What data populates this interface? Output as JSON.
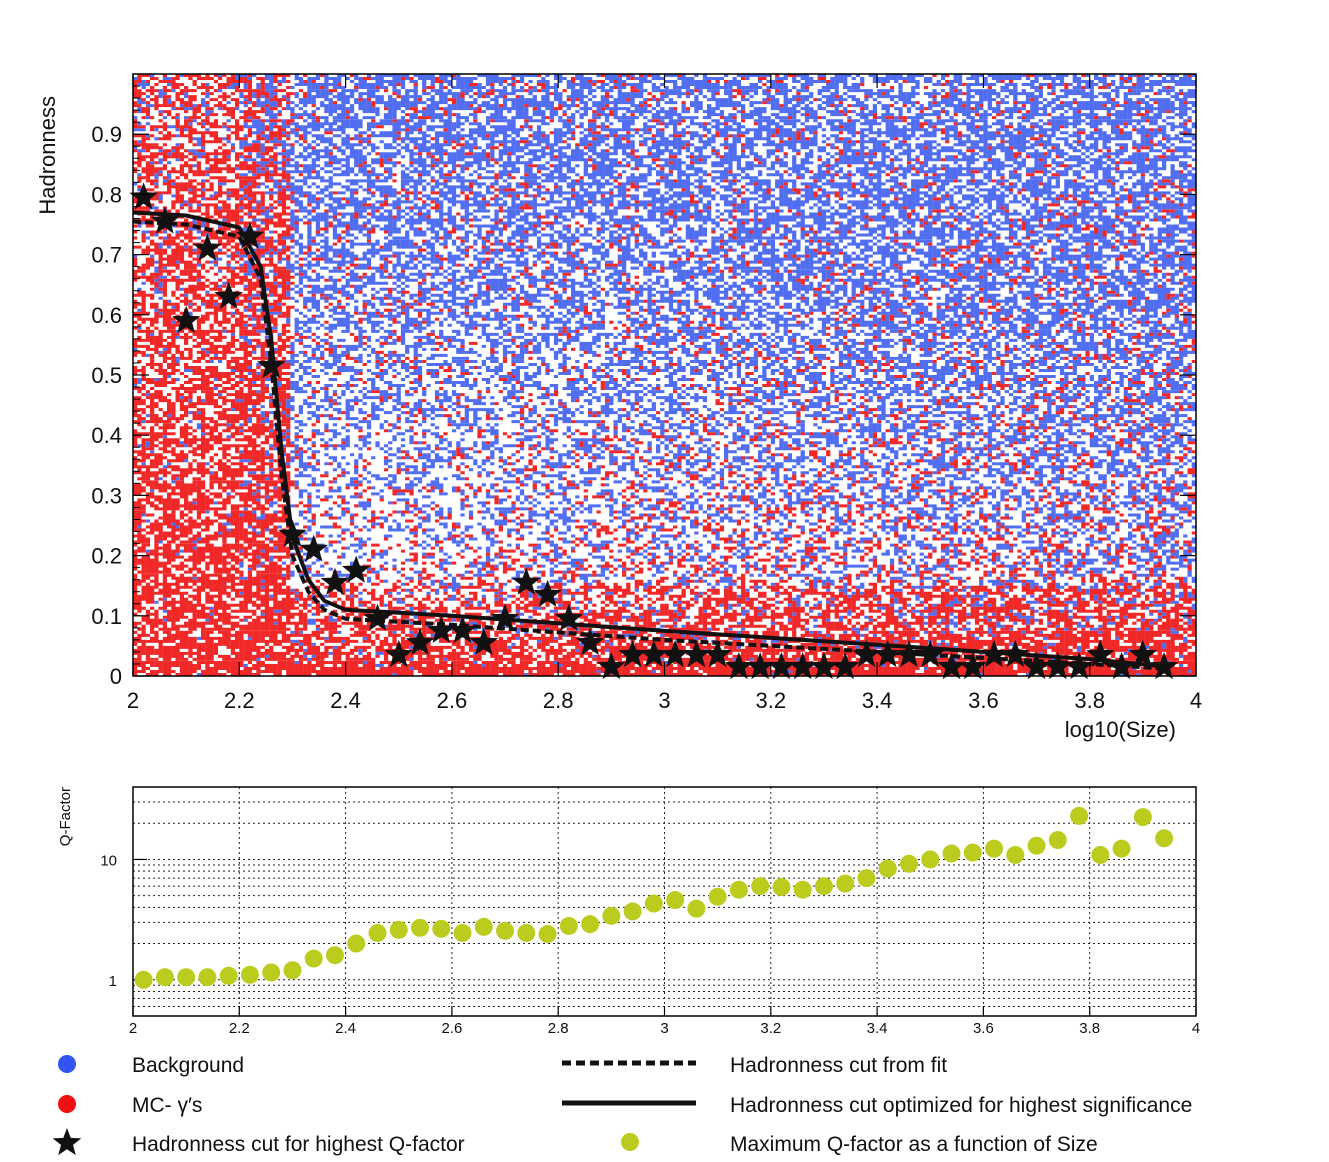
{
  "chart_data": [
    {
      "type": "scatter",
      "xlabel": "log10(Size)",
      "ylabel": "Hadronness",
      "xlim": [
        2,
        4
      ],
      "ylim": [
        0,
        1
      ],
      "grid": false,
      "x_ticks": [
        "2",
        "2.2",
        "2.4",
        "2.6",
        "2.8",
        "3",
        "3.2",
        "3.4",
        "3.6",
        "3.8",
        "4"
      ],
      "y_ticks": [
        "0",
        "0.1",
        "0.2",
        "0.3",
        "0.4",
        "0.5",
        "0.6",
        "0.7",
        "0.8",
        "0.9"
      ],
      "colors": {
        "background": "#3355ee",
        "mc_gamma": "#ee1111",
        "stars": "#111111"
      },
      "stars": [
        [
          2.02,
          0.795
        ],
        [
          2.06,
          0.755
        ],
        [
          2.1,
          0.59
        ],
        [
          2.14,
          0.71
        ],
        [
          2.18,
          0.63
        ],
        [
          2.22,
          0.73
        ],
        [
          2.26,
          0.515
        ],
        [
          2.3,
          0.235
        ],
        [
          2.34,
          0.21
        ],
        [
          2.38,
          0.155
        ],
        [
          2.42,
          0.175
        ],
        [
          2.46,
          0.095
        ],
        [
          2.5,
          0.035
        ],
        [
          2.54,
          0.055
        ],
        [
          2.58,
          0.075
        ],
        [
          2.62,
          0.075
        ],
        [
          2.66,
          0.055
        ],
        [
          2.7,
          0.095
        ],
        [
          2.74,
          0.155
        ],
        [
          2.78,
          0.135
        ],
        [
          2.82,
          0.095
        ],
        [
          2.86,
          0.055
        ],
        [
          2.9,
          0.015
        ],
        [
          2.94,
          0.035
        ],
        [
          2.98,
          0.035
        ],
        [
          3.02,
          0.035
        ],
        [
          3.06,
          0.035
        ],
        [
          3.1,
          0.035
        ],
        [
          3.14,
          0.015
        ],
        [
          3.18,
          0.015
        ],
        [
          3.22,
          0.015
        ],
        [
          3.26,
          0.015
        ],
        [
          3.3,
          0.015
        ],
        [
          3.34,
          0.015
        ],
        [
          3.38,
          0.035
        ],
        [
          3.42,
          0.035
        ],
        [
          3.46,
          0.035
        ],
        [
          3.5,
          0.035
        ],
        [
          3.54,
          0.015
        ],
        [
          3.58,
          0.015
        ],
        [
          3.62,
          0.035
        ],
        [
          3.66,
          0.035
        ],
        [
          3.7,
          0.015
        ],
        [
          3.74,
          0.015
        ],
        [
          3.78,
          0.015
        ],
        [
          3.82,
          0.035
        ],
        [
          3.86,
          0.015
        ],
        [
          3.9,
          0.035
        ],
        [
          3.94,
          0.015
        ]
      ],
      "fit_cut": [
        [
          2.0,
          0.755
        ],
        [
          2.1,
          0.75
        ],
        [
          2.2,
          0.73
        ],
        [
          2.24,
          0.66
        ],
        [
          2.26,
          0.52
        ],
        [
          2.28,
          0.33
        ],
        [
          2.3,
          0.2
        ],
        [
          2.33,
          0.14
        ],
        [
          2.36,
          0.11
        ],
        [
          2.4,
          0.095
        ],
        [
          2.6,
          0.085
        ],
        [
          3.0,
          0.06
        ],
        [
          3.4,
          0.04
        ],
        [
          3.8,
          0.02
        ],
        [
          3.95,
          0.012
        ]
      ],
      "optimized_cut": [
        [
          2.0,
          0.77
        ],
        [
          2.1,
          0.765
        ],
        [
          2.2,
          0.745
        ],
        [
          2.24,
          0.68
        ],
        [
          2.26,
          0.56
        ],
        [
          2.28,
          0.37
        ],
        [
          2.3,
          0.23
        ],
        [
          2.33,
          0.16
        ],
        [
          2.36,
          0.125
        ],
        [
          2.4,
          0.11
        ],
        [
          2.6,
          0.1
        ],
        [
          3.0,
          0.075
        ],
        [
          3.4,
          0.052
        ],
        [
          3.8,
          0.028
        ],
        [
          3.95,
          0.015
        ]
      ]
    },
    {
      "type": "scatter",
      "ylabel": "Q-Factor",
      "xlim": [
        2,
        4
      ],
      "ylim": [
        0.5,
        40
      ],
      "yscale": "log",
      "grid": true,
      "x_ticks": [
        "2",
        "2.2",
        "2.4",
        "2.6",
        "2.8",
        "3",
        "3.2",
        "3.4",
        "3.6",
        "3.8",
        "4"
      ],
      "y_ticks": [
        "1",
        "10"
      ],
      "point_color": "#bccc1e",
      "points": [
        [
          2.02,
          1.0
        ],
        [
          2.06,
          1.05
        ],
        [
          2.1,
          1.05
        ],
        [
          2.14,
          1.05
        ],
        [
          2.18,
          1.08
        ],
        [
          2.22,
          1.1
        ],
        [
          2.26,
          1.15
        ],
        [
          2.3,
          1.2
        ],
        [
          2.34,
          1.5
        ],
        [
          2.38,
          1.6
        ],
        [
          2.42,
          2.0
        ],
        [
          2.46,
          2.45
        ],
        [
          2.5,
          2.6
        ],
        [
          2.54,
          2.7
        ],
        [
          2.58,
          2.65
        ],
        [
          2.62,
          2.45
        ],
        [
          2.66,
          2.75
        ],
        [
          2.7,
          2.55
        ],
        [
          2.74,
          2.45
        ],
        [
          2.78,
          2.4
        ],
        [
          2.82,
          2.8
        ],
        [
          2.86,
          2.9
        ],
        [
          2.9,
          3.4
        ],
        [
          2.94,
          3.7
        ],
        [
          2.98,
          4.3
        ],
        [
          3.02,
          4.6
        ],
        [
          3.06,
          3.9
        ],
        [
          3.1,
          4.9
        ],
        [
          3.14,
          5.6
        ],
        [
          3.18,
          6.0
        ],
        [
          3.22,
          5.9
        ],
        [
          3.26,
          5.6
        ],
        [
          3.3,
          6.0
        ],
        [
          3.34,
          6.3
        ],
        [
          3.38,
          7.0
        ],
        [
          3.42,
          8.4
        ],
        [
          3.46,
          9.2
        ],
        [
          3.5,
          10.0
        ],
        [
          3.54,
          11.2
        ],
        [
          3.58,
          11.4
        ],
        [
          3.62,
          12.3
        ],
        [
          3.66,
          10.9
        ],
        [
          3.7,
          13.0
        ],
        [
          3.74,
          14.5
        ],
        [
          3.78,
          23.0
        ],
        [
          3.82,
          10.9
        ],
        [
          3.86,
          12.3
        ],
        [
          3.9,
          22.5
        ],
        [
          3.94,
          15.0
        ]
      ]
    }
  ],
  "legend": [
    {
      "symbol": "blue-dot",
      "label": "Background"
    },
    {
      "symbol": "red-dot",
      "label": "MC- γ′s"
    },
    {
      "symbol": "star",
      "label": "Hadronness cut for highest Q-factor"
    },
    {
      "symbol": "dashed-line",
      "label": "Hadronness cut from fit"
    },
    {
      "symbol": "solid-line",
      "label": "Hadronness cut optimized for highest significance"
    },
    {
      "symbol": "green-dot",
      "label": "Maximum Q-factor as a function of Size"
    }
  ]
}
